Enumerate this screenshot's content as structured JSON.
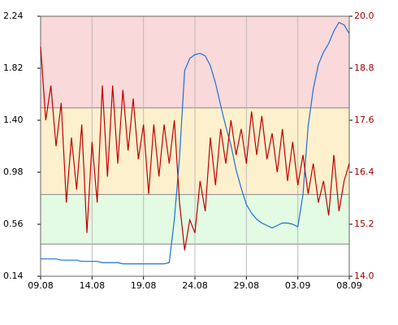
{
  "chart_data": {
    "type": "line",
    "x": [
      0,
      0.5,
      1,
      1.5,
      2,
      2.5,
      3,
      3.5,
      4,
      4.5,
      5,
      5.5,
      6,
      6.5,
      7,
      7.5,
      8,
      8.5,
      9,
      9.5,
      10,
      10.5,
      11,
      11.5,
      12,
      12.5,
      13,
      13.5,
      14,
      14.5,
      15,
      15.5,
      16,
      16.5,
      17,
      17.5,
      18,
      18.5,
      19,
      19.5,
      20,
      20.5,
      21,
      21.5,
      22,
      22.5,
      23,
      23.5,
      24,
      24.5,
      25,
      25.5,
      26,
      26.5,
      27,
      27.5,
      28,
      28.5,
      29,
      29.5,
      30
    ],
    "xlim": [
      0,
      30
    ],
    "xticks": [
      {
        "value": 0,
        "label": "09.08"
      },
      {
        "value": 5,
        "label": "14.08"
      },
      {
        "value": 10,
        "label": "19.08"
      },
      {
        "value": 15,
        "label": "24.08"
      },
      {
        "value": 20,
        "label": "29.08"
      },
      {
        "value": 25,
        "label": "03.09"
      },
      {
        "value": 30,
        "label": "08.09"
      }
    ],
    "ylim": [
      0.14,
      2.24
    ],
    "yticks": [
      0.14,
      0.56,
      0.98,
      {
        "value": 1.4,
        "label": "1.40"
      },
      1.82,
      2.24
    ],
    "y2lim": [
      14,
      20
    ],
    "y2ticks": [
      {
        "value": 14,
        "label": "14.0"
      },
      15.2,
      16.4,
      17.6,
      18.8,
      {
        "value": 20,
        "label": "20.0"
      }
    ],
    "grid": true,
    "bands": [
      {
        "from": 0.4,
        "to": 0.8,
        "color": "#e2fbe2"
      },
      {
        "from": 0.8,
        "to": 1.5,
        "color": "#fdf0cc"
      },
      {
        "from": 1.5,
        "to": 2.24,
        "color": "#f9d9d9"
      }
    ],
    "series": [
      {
        "color": "#1f6fd8",
        "values": [
          0.28,
          0.28,
          0.28,
          0.28,
          0.27,
          0.27,
          0.27,
          0.27,
          0.26,
          0.26,
          0.26,
          0.26,
          0.25,
          0.25,
          0.25,
          0.25,
          0.24,
          0.24,
          0.24,
          0.24,
          0.24,
          0.24,
          0.24,
          0.24,
          0.24,
          0.25,
          0.6,
          1.1,
          1.8,
          1.9,
          1.93,
          1.94,
          1.92,
          1.84,
          1.7,
          1.52,
          1.35,
          1.2,
          1.0,
          0.85,
          0.72,
          0.65,
          0.6,
          0.57,
          0.55,
          0.53,
          0.55,
          0.57,
          0.57,
          0.56,
          0.54,
          0.8,
          1.35,
          1.65,
          1.85,
          1.95,
          2.02,
          2.12,
          2.19,
          2.17,
          2.1
        ]
      },
      {
        "color": "#c00000",
        "axis": "y2",
        "values": [
          19.3,
          17.6,
          18.4,
          17.0,
          18.0,
          15.7,
          17.2,
          16.0,
          17.5,
          15.0,
          17.1,
          15.7,
          18.4,
          16.3,
          18.4,
          16.6,
          18.3,
          16.9,
          18.1,
          16.7,
          17.5,
          15.9,
          17.5,
          16.3,
          17.5,
          16.6,
          17.6,
          15.7,
          14.6,
          15.3,
          15.0,
          16.2,
          15.5,
          17.2,
          16.1,
          17.4,
          16.6,
          17.6,
          16.8,
          17.4,
          16.6,
          17.8,
          16.8,
          17.7,
          16.7,
          17.3,
          16.4,
          17.4,
          16.2,
          17.1,
          16.1,
          16.8,
          15.9,
          16.6,
          15.7,
          16.2,
          15.4,
          16.8,
          15.5,
          16.2,
          16.6
        ]
      }
    ]
  }
}
